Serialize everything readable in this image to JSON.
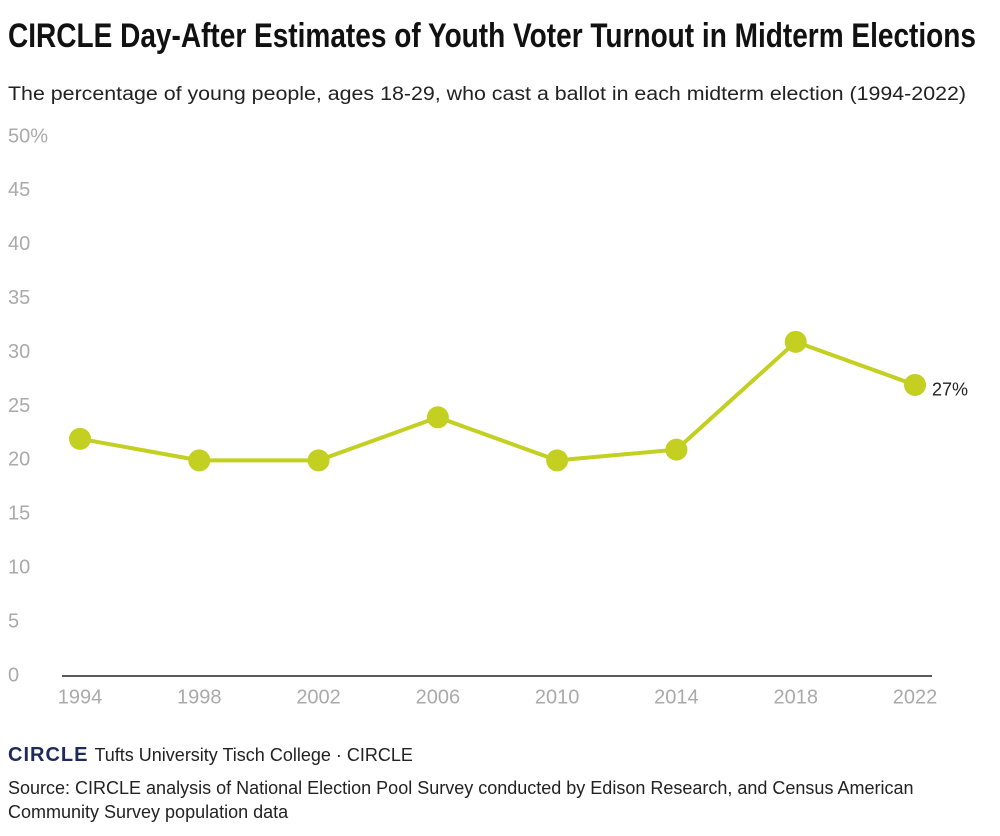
{
  "chart_data": {
    "type": "line",
    "title": "CIRCLE Day-After Estimates of Youth Voter Turnout in Midterm Elections",
    "subtitle": "The percentage of young people, ages 18-29, who cast a ballot in each midterm election (1994-2022)",
    "categories": [
      "1994",
      "1998",
      "2002",
      "2006",
      "2010",
      "2014",
      "2018",
      "2022"
    ],
    "values": [
      22,
      20,
      20,
      24,
      20,
      21,
      31,
      27
    ],
    "value_labels": [
      null,
      null,
      null,
      null,
      null,
      null,
      null,
      "27%"
    ],
    "color": "#c3cf21",
    "ylim": [
      0,
      50
    ],
    "yticks": [
      0,
      5,
      10,
      15,
      20,
      25,
      30,
      35,
      40,
      45,
      {
        "value": 50,
        "label": "50%"
      }
    ],
    "grid": false
  },
  "footer": {
    "logo": "CIRCLE",
    "credit": "Tufts University Tisch College · CIRCLE",
    "source": "Source: CIRCLE analysis of National Election Pool Survey conducted by Edison Research, and Census American Community Survey population data"
  }
}
